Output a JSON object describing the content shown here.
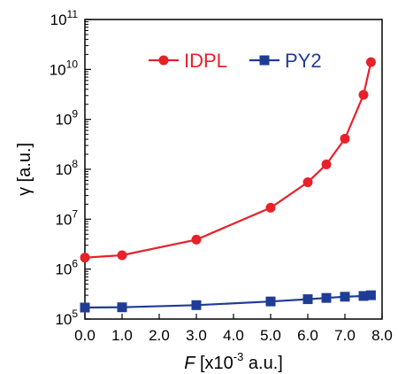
{
  "chart_data": {
    "type": "line",
    "title": "",
    "xlabel": {
      "symbol": "F",
      "prefix": " [x10",
      "exp": "-3",
      "suffix": " a.u.]"
    },
    "ylabel": "γ [a.u.]",
    "xlim": [
      0,
      8
    ],
    "ylim": [
      100000,
      100000000000
    ],
    "yscale": "log",
    "x_ticks": [
      "0.0",
      "1.0",
      "2.0",
      "3.0",
      "4.0",
      "5.0",
      "6.0",
      "7.0",
      "8.0"
    ],
    "y_ticks": [
      {
        "value": 100000,
        "base": "10",
        "exp": "5"
      },
      {
        "value": 1000000,
        "base": "10",
        "exp": "6"
      },
      {
        "value": 10000000,
        "base": "10",
        "exp": "7"
      },
      {
        "value": 100000000,
        "base": "10",
        "exp": "8"
      },
      {
        "value": 1000000000,
        "base": "10",
        "exp": "9"
      },
      {
        "value": 10000000000,
        "base": "10",
        "exp": "10"
      },
      {
        "value": 100000000000,
        "base": "10",
        "exp": "11"
      }
    ],
    "grid": false,
    "legend": "top",
    "series": [
      {
        "name": "IDPL",
        "color": "#e8212a",
        "marker": "circle",
        "x": [
          0.0,
          1.0,
          3.0,
          5.0,
          6.0,
          6.5,
          7.0,
          7.5,
          7.7
        ],
        "y": [
          1700000,
          1900000,
          3900000,
          17000000,
          55000000,
          125000000,
          410000000,
          3100000000,
          14000000000
        ]
      },
      {
        "name": "PY2",
        "color": "#1f3c96",
        "marker": "square",
        "x": [
          0.0,
          1.0,
          3.0,
          5.0,
          6.0,
          6.5,
          7.0,
          7.5,
          7.7
        ],
        "y": [
          170000,
          172000,
          190000,
          225000,
          250000,
          265000,
          280000,
          290000,
          300000
        ]
      }
    ]
  }
}
